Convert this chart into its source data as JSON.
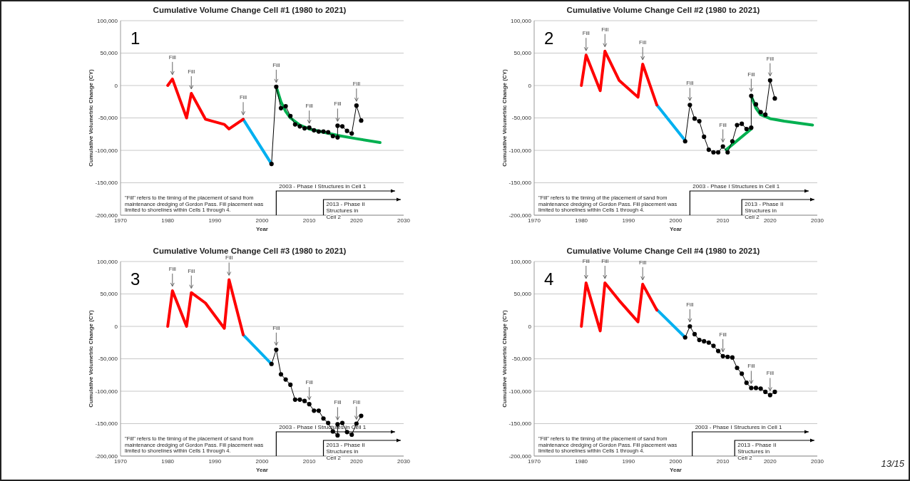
{
  "chart_data": [
    {
      "type": "line",
      "title": "Cumulative Volume Change Cell #1 (1980 to 2021)",
      "xlabel": "Year",
      "ylabel": "Cumulative Volumetric Change (CY)",
      "xlim": [
        1970,
        2030
      ],
      "xticks": [
        1970,
        1980,
        1990,
        2000,
        2010,
        2020,
        2030
      ],
      "ylim": [
        -200000,
        100000
      ],
      "yticks": [
        {
          "value": -200000,
          "label": "-200,000"
        },
        {
          "value": -150000,
          "label": "-150,000"
        },
        {
          "value": -100000,
          "label": "-100,000"
        },
        {
          "value": -50000,
          "label": "-50,000"
        },
        {
          "value": 0,
          "label": "0"
        },
        {
          "value": 50000,
          "label": "50,000"
        },
        {
          "value": 100000,
          "label": "100,000"
        }
      ],
      "grid": "y",
      "series": [
        {
          "color": "#000000",
          "marker": "circle",
          "x": [
            2002,
            2003,
            2004,
            2005,
            2006,
            2007,
            2008,
            2009,
            2010,
            2011,
            2012,
            2013,
            2014,
            2015,
            2016,
            2016,
            2017,
            2018,
            2019,
            2020,
            2021
          ],
          "values": [
            -121000,
            -2000,
            -35000,
            -32000,
            -47000,
            -60000,
            -63000,
            -66000,
            -65000,
            -69000,
            -71000,
            -71000,
            -72000,
            -78000,
            -80000,
            -62000,
            -63000,
            -70000,
            -74000,
            -31000,
            -54000
          ]
        },
        {
          "color": "#ff0000",
          "x": [
            1980,
            1981,
            1984,
            1985,
            1988,
            1992,
            1993,
            1996
          ],
          "values": [
            0,
            10000,
            -50000,
            -12000,
            -52000,
            -60000,
            -67000,
            -52000
          ]
        },
        {
          "color": "#00b0f0",
          "x": [
            1996,
            2002
          ],
          "values": [
            -52000,
            -121000
          ]
        },
        {
          "color": "#00b050",
          "x": [
            2003,
            2004,
            2005,
            2006,
            2008,
            2010,
            2013,
            2016,
            2020,
            2025
          ],
          "values": [
            -2000,
            -25000,
            -40000,
            -50000,
            -61000,
            -67000,
            -72000,
            -77000,
            -82000,
            -88000
          ]
        }
      ],
      "ref_lines": [
        {
          "axis": "x",
          "value": 2003,
          "label": "2003 - Phase I Structures in Cell 1"
        },
        {
          "axis": "x",
          "value": 2013,
          "label": "2013 - Phase II Structures in Cell 2"
        }
      ],
      "annotations": [
        "1",
        "\"Fill\" refers to the timing of the placement of sand from maintenance dredging of Gordon Pass. Fill placement was limited to shorelines within  Cells 1 through 4.",
        {
          "text": "Fill",
          "x": 1981,
          "y": 10000
        },
        {
          "text": "Fill",
          "x": 1985,
          "y": -12000
        },
        {
          "text": "Fill",
          "x": 1996,
          "y": -52000
        },
        {
          "text": "Fill",
          "x": 2003,
          "y": -2000
        },
        {
          "text": "Fill",
          "x": 2010,
          "y": -65000
        },
        {
          "text": "Fill",
          "x": 2016,
          "y": -62000
        },
        {
          "text": "Fill",
          "x": 2020,
          "y": -31000
        }
      ]
    },
    {
      "type": "line",
      "title": "Cumulative Volume Change Cell #2 (1980 to 2021)",
      "xlabel": "Year",
      "ylabel": "Cumulative Volumetric Change (CY)",
      "xlim": [
        1970,
        2030
      ],
      "xticks": [
        1970,
        1980,
        1990,
        2000,
        2010,
        2020,
        2030
      ],
      "ylim": [
        -200000,
        100000
      ],
      "yticks": [
        {
          "value": -200000,
          "label": "-200,000"
        },
        {
          "value": -150000,
          "label": "-150,000"
        },
        {
          "value": -100000,
          "label": "-100,000"
        },
        {
          "value": -50000,
          "label": "-50,000"
        },
        {
          "value": 0,
          "label": "0"
        },
        {
          "value": 50000,
          "label": "50,000"
        },
        {
          "value": 100000,
          "label": "100,000"
        }
      ],
      "grid": "y",
      "series": [
        {
          "color": "#000000",
          "marker": "circle",
          "x": [
            2002,
            2003,
            2004,
            2005,
            2006,
            2007,
            2008,
            2009,
            2010,
            2011,
            2012,
            2013,
            2014,
            2015,
            2016,
            2016,
            2017,
            2018,
            2019,
            2020,
            2021
          ],
          "values": [
            -86000,
            -30000,
            -51000,
            -55000,
            -79000,
            -99000,
            -103000,
            -103000,
            -94000,
            -103000,
            -86000,
            -61000,
            -59000,
            -67000,
            -65000,
            -16000,
            -29000,
            -41000,
            -45000,
            8000,
            -20000
          ]
        },
        {
          "color": "#ff0000",
          "x": [
            1980,
            1981,
            1984,
            1985,
            1988,
            1992,
            1993,
            1996
          ],
          "values": [
            0,
            47000,
            -8000,
            53000,
            8000,
            -18000,
            33000,
            -30000
          ]
        },
        {
          "color": "#00b0f0",
          "x": [
            1996,
            2002
          ],
          "values": [
            -30000,
            -85000
          ]
        },
        {
          "color": "#00b050",
          "x": [
            2010.7,
            2016
          ],
          "values": [
            -99000,
            -67000
          ]
        },
        {
          "color": "#00b050",
          "x": [
            2016,
            2017,
            2018,
            2020,
            2023,
            2029
          ],
          "values": [
            -16000,
            -35000,
            -45000,
            -51000,
            -55000,
            -61000
          ]
        }
      ],
      "ref_lines": [
        {
          "axis": "x",
          "value": 2003,
          "label": "2003 - Phase I Structures in Cell 1"
        },
        {
          "axis": "x",
          "value": 2014,
          "label": "2013 - Phase II Structures in Cell 2"
        }
      ],
      "annotations": [
        "2",
        "\"Fill\" refers to the timing of the placement of sand from maintenance dredging of Gordon Pass. Fill placement was limited to shorelines within  Cells 1 through 4.",
        {
          "text": "Fill",
          "x": 1981,
          "y": 47000
        },
        {
          "text": "Fill",
          "x": 1985,
          "y": 53000
        },
        {
          "text": "Fill",
          "x": 1993,
          "y": 33000
        },
        {
          "text": "Fill",
          "x": 2003,
          "y": -30000
        },
        {
          "text": "Fill",
          "x": 2010,
          "y": -94000
        },
        {
          "text": "Fill",
          "x": 2016,
          "y": -16000
        },
        {
          "text": "Fill",
          "x": 2020,
          "y": 8000
        }
      ]
    },
    {
      "type": "line",
      "title": "Cumulative Volume Change Cell #3 (1980 to 2021)",
      "xlabel": "Year",
      "ylabel": "Cumulative Volumetric Change (CY)",
      "xlim": [
        1970,
        2030
      ],
      "xticks": [
        1970,
        1980,
        1990,
        2000,
        2010,
        2020,
        2030
      ],
      "ylim": [
        -200000,
        100000
      ],
      "yticks": [
        {
          "value": -200000,
          "label": "-200,000"
        },
        {
          "value": -150000,
          "label": "-150,000"
        },
        {
          "value": -100000,
          "label": "-100,000"
        },
        {
          "value": -50000,
          "label": "-50,000"
        },
        {
          "value": 0,
          "label": "0"
        },
        {
          "value": 50000,
          "label": "50,000"
        },
        {
          "value": 100000,
          "label": "100,000"
        }
      ],
      "grid": "y",
      "series": [
        {
          "color": "#000000",
          "marker": "circle",
          "x": [
            2002,
            2003,
            2004,
            2005,
            2006,
            2007,
            2008,
            2009,
            2010,
            2011,
            2012,
            2013,
            2014,
            2015,
            2016,
            2016,
            2017,
            2018,
            2019,
            2020,
            2021
          ],
          "values": [
            -58000,
            -36000,
            -74000,
            -82000,
            -90000,
            -113000,
            -113000,
            -115000,
            -120000,
            -130000,
            -130000,
            -142000,
            -149000,
            -162000,
            -168000,
            -151000,
            -149000,
            -163000,
            -167000,
            -150000,
            -138000
          ]
        },
        {
          "color": "#ff0000",
          "x": [
            1980,
            1981,
            1984,
            1985,
            1988,
            1992,
            1993,
            1996
          ],
          "values": [
            0,
            55000,
            0,
            52000,
            36000,
            -3000,
            72000,
            -13000
          ]
        },
        {
          "color": "#00b0f0",
          "x": [
            1996,
            2002
          ],
          "values": [
            -13000,
            -58000
          ]
        }
      ],
      "ref_lines": [
        {
          "axis": "x",
          "value": 2003,
          "label": "2003 - Phase I Structures in Cell 1"
        },
        {
          "axis": "x",
          "value": 2013,
          "label": "2013 - Phase II Structures in Cell 2"
        }
      ],
      "annotations": [
        "3",
        "\"Fill\" refers to the timing of the placement of sand from maintenance dredging of Gordon Pass. Fill placement was limited to shorelines within  Cells 1 through 4.",
        {
          "text": "Fill",
          "x": 1981,
          "y": 55000
        },
        {
          "text": "Fill",
          "x": 1985,
          "y": 52000
        },
        {
          "text": "Fill",
          "x": 1993,
          "y": 72000
        },
        {
          "text": "Fill",
          "x": 2003,
          "y": -36000
        },
        {
          "text": "Fill",
          "x": 2010,
          "y": -120000
        },
        {
          "text": "Fill",
          "x": 2016,
          "y": -151000
        },
        {
          "text": "Fill",
          "x": 2020,
          "y": -150000
        }
      ]
    },
    {
      "type": "line",
      "title": "Cumulative Volume Change Cell #4 (1980 to 2021)",
      "xlabel": "Year",
      "ylabel": "Cumulative Volumetric Change (CY)",
      "xlim": [
        1970,
        2030
      ],
      "xticks": [
        1970,
        1980,
        1990,
        2000,
        2010,
        2020,
        2030
      ],
      "ylim": [
        -200000,
        100000
      ],
      "yticks": [
        {
          "value": -200000,
          "label": "-200,000"
        },
        {
          "value": -150000,
          "label": "-150,000"
        },
        {
          "value": -100000,
          "label": "-100,000"
        },
        {
          "value": -50000,
          "label": "-50,000"
        },
        {
          "value": 0,
          "label": "0"
        },
        {
          "value": 50000,
          "label": "50,000"
        },
        {
          "value": 100000,
          "label": "100,000"
        }
      ],
      "grid": "y",
      "series": [
        {
          "color": "#000000",
          "marker": "circle",
          "x": [
            2002,
            2003,
            2004,
            2005,
            2006,
            2007,
            2008,
            2009,
            2010,
            2011,
            2012,
            2013,
            2014,
            2015,
            2016,
            2017,
            2018,
            2019,
            2020,
            2021
          ],
          "values": [
            -17000,
            0,
            -12000,
            -21000,
            -23000,
            -25000,
            -30000,
            -38000,
            -46000,
            -47000,
            -48000,
            -64000,
            -73000,
            -87000,
            -95000,
            -95000,
            -96000,
            -101000,
            -106000,
            -101000
          ]
        },
        {
          "color": "#ff0000",
          "x": [
            1980,
            1981,
            1984,
            1985,
            1988,
            1992,
            1993,
            1996
          ],
          "values": [
            0,
            67000,
            -7000,
            67000,
            40000,
            7000,
            65000,
            25000
          ]
        },
        {
          "color": "#00b0f0",
          "x": [
            1996,
            2002
          ],
          "values": [
            26000,
            -17000
          ]
        }
      ],
      "ref_lines": [
        {
          "axis": "x",
          "value": 2003.5,
          "label": "2003 - Phase I Structures in Cell 1"
        },
        {
          "axis": "x",
          "value": 2012.5,
          "label": "2013 - Phase II Structures in Cell 2"
        }
      ],
      "annotations": [
        "4",
        "\"Fill\" refers to the timing of the placement of sand from maintenance dredging of Gordon Pass. Fill placement was limited to shorelines within  Cells 1 through 4.",
        "13/15",
        {
          "text": "Fill",
          "x": 1981,
          "y": 67000
        },
        {
          "text": "Fill",
          "x": 1985,
          "y": 67000
        },
        {
          "text": "Fill",
          "x": 1993,
          "y": 65000
        },
        {
          "text": "Fill",
          "x": 2003,
          "y": 0
        },
        {
          "text": "Fill",
          "x": 2010,
          "y": -46000
        },
        {
          "text": "Fill",
          "x": 2016,
          "y": -95000
        },
        {
          "text": "Fill",
          "x": 2020,
          "y": -106000
        }
      ]
    }
  ]
}
